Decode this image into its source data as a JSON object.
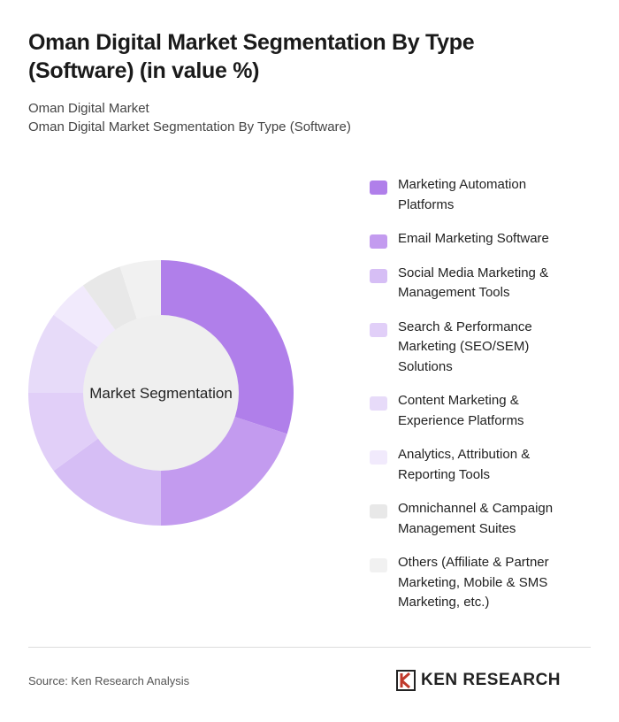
{
  "chart_data": {
    "type": "donut",
    "title": "Oman Digital Market Segmentation By Type (Software) (in value %)",
    "subtitle": [
      "Oman Digital Market",
      "Oman Digital Market Segmentation By Type (Software)"
    ],
    "center_label": "Market Segmentation",
    "categories": [
      "Marketing Automation Platforms",
      "Email Marketing Software",
      "Social Media Marketing & Management Tools",
      "Search & Performance Marketing (SEO/SEM) Solutions",
      "Content Marketing & Experience Platforms",
      "Analytics, Attribution & Reporting Tools",
      "Omnichannel & Campaign Management Suites",
      "Others (Affiliate & Partner Marketing, Mobile & SMS Marketing, etc.)"
    ],
    "values": [
      30,
      20,
      15,
      10,
      10,
      5,
      5,
      5
    ],
    "colors": [
      "#b07fea",
      "#c39bef",
      "#d6bef5",
      "#e1cff8",
      "#e7dbf9",
      "#f1eafc",
      "#e8e8e8",
      "#f1f1f1"
    ]
  },
  "source": "Source: Ken Research Analysis",
  "logo": "KEN RESEARCH"
}
